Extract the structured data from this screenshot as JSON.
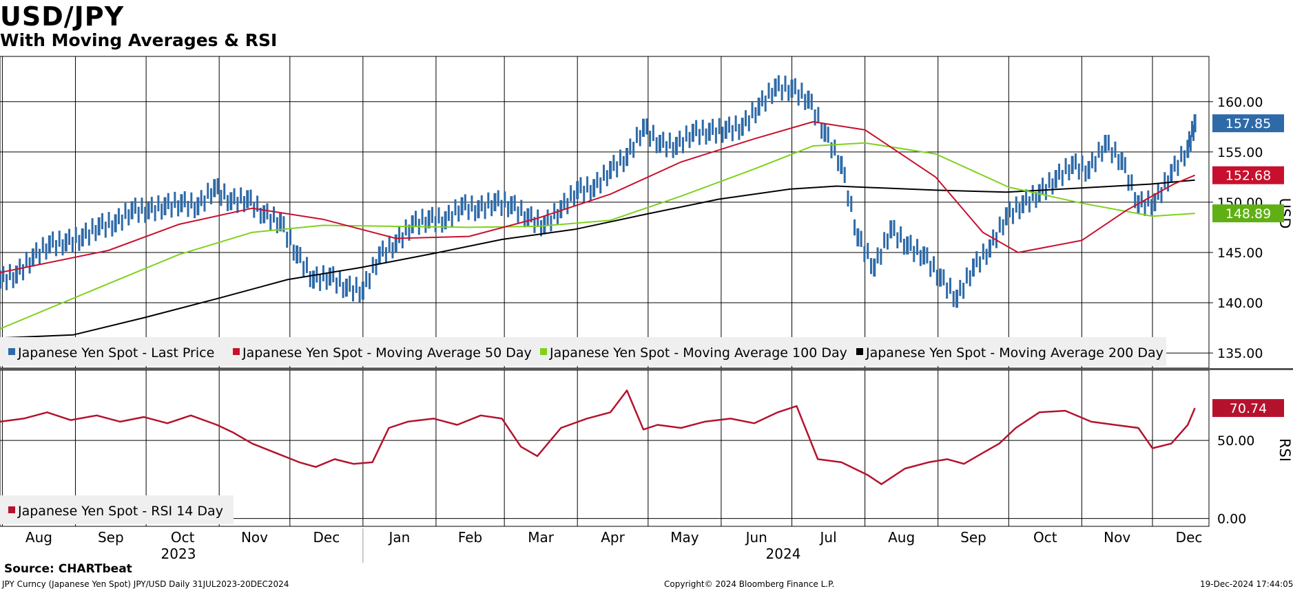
{
  "header": {
    "title": "USD/JPY",
    "subtitle": "With Moving Averages & RSI"
  },
  "footer": {
    "source": "Source: CHARTbeat",
    "ticker": "JPY Curncy (Japanese Yen Spot) JPY/USD  Daily 31JUL2023-20DEC2024",
    "copyright": "Copyright© 2024 Bloomberg Finance L.P.",
    "timestamp": "19-Dec-2024 17:44:05"
  },
  "colors": {
    "price": "#2e6aa8",
    "ma50": "#c8102e",
    "ma100": "#7fd11b",
    "ma200": "#000000",
    "rsi": "#b5122e"
  },
  "chart_data": [
    {
      "type": "line",
      "panel": "price",
      "ylabel": "USD",
      "ylim": [
        133.5,
        164.5
      ],
      "yticks": [
        "160.00",
        "155.00",
        "150.00",
        "145.00",
        "140.00",
        "135.00"
      ],
      "grid": true,
      "legend": "bottom-left",
      "legend_entries": [
        "Japanese Yen Spot - Last Price",
        "Japanese Yen Spot - Moving Average 50 Day",
        "Japanese Yen Spot - Moving Average 100 Day",
        "Japanese Yen Spot - Moving Average 200 Day"
      ],
      "last_values": {
        "price": "157.85",
        "ma50": "152.68",
        "ma100": "148.89"
      },
      "series": [
        {
          "name": "Japanese Yen Spot - Last Price",
          "x": [
            "2023-07-31",
            "2023-08-07",
            "2023-08-14",
            "2023-08-21",
            "2023-08-28",
            "2023-09-04",
            "2023-09-11",
            "2023-09-18",
            "2023-09-25",
            "2023-10-02",
            "2023-10-09",
            "2023-10-16",
            "2023-10-23",
            "2023-10-30",
            "2023-11-06",
            "2023-11-13",
            "2023-11-20",
            "2023-11-27",
            "2023-12-04",
            "2023-12-11",
            "2023-12-18",
            "2023-12-25",
            "2024-01-01",
            "2024-01-08",
            "2024-01-15",
            "2024-01-22",
            "2024-01-29",
            "2024-02-05",
            "2024-02-12",
            "2024-02-19",
            "2024-02-26",
            "2024-03-04",
            "2024-03-11",
            "2024-03-18",
            "2024-03-25",
            "2024-04-01",
            "2024-04-08",
            "2024-04-15",
            "2024-04-22",
            "2024-04-29",
            "2024-05-06",
            "2024-05-13",
            "2024-05-20",
            "2024-05-27",
            "2024-06-03",
            "2024-06-10",
            "2024-06-17",
            "2024-06-24",
            "2024-07-01",
            "2024-07-08",
            "2024-07-15",
            "2024-07-22",
            "2024-07-29",
            "2024-08-05",
            "2024-08-12",
            "2024-08-19",
            "2024-08-26",
            "2024-09-02",
            "2024-09-09",
            "2024-09-16",
            "2024-09-23",
            "2024-09-30",
            "2024-10-07",
            "2024-10-14",
            "2024-10-21",
            "2024-10-28",
            "2024-11-04",
            "2024-11-11",
            "2024-11-18",
            "2024-11-25",
            "2024-12-02",
            "2024-12-09",
            "2024-12-16",
            "2024-12-19"
          ],
          "values": [
            142.3,
            142.8,
            144.5,
            145.8,
            146.0,
            146.5,
            147.6,
            147.9,
            149.2,
            149.2,
            149.6,
            149.9,
            149.6,
            151.4,
            150.1,
            150.3,
            148.8,
            148.0,
            144.8,
            142.3,
            142.6,
            141.5,
            141.2,
            144.7,
            145.9,
            147.8,
            148.3,
            148.2,
            149.6,
            149.3,
            150.0,
            149.7,
            148.5,
            147.7,
            149.3,
            151.2,
            151.4,
            153.2,
            154.5,
            157.4,
            155.8,
            155.6,
            156.9,
            157.0,
            157.2,
            157.5,
            159.5,
            161.4,
            161.3,
            160.2,
            156.9,
            153.7,
            146.5,
            143.5,
            147.3,
            145.7,
            144.7,
            142.5,
            140.4,
            143.5,
            145.4,
            148.6,
            149.8,
            150.9,
            152.3,
            153.7,
            153.2,
            155.8,
            154.1,
            149.8,
            150.0,
            152.9,
            155.3,
            157.85
          ]
        },
        {
          "name": "Japanese Yen Spot - Moving Average 50 Day",
          "x": [
            "2023-07-31",
            "2023-09-15",
            "2023-10-15",
            "2023-11-15",
            "2023-12-15",
            "2024-01-15",
            "2024-02-15",
            "2024-03-15",
            "2024-04-15",
            "2024-05-15",
            "2024-06-15",
            "2024-07-10",
            "2024-08-01",
            "2024-08-31",
            "2024-09-20",
            "2024-10-05",
            "2024-11-01",
            "2024-11-20",
            "2024-12-10",
            "2024-12-19"
          ],
          "values": [
            143.0,
            145.2,
            147.8,
            149.4,
            148.3,
            146.4,
            146.6,
            148.4,
            150.8,
            154.0,
            156.3,
            158.0,
            157.2,
            152.5,
            147.0,
            145.0,
            146.2,
            149.2,
            151.8,
            152.68
          ]
        },
        {
          "name": "Japanese Yen Spot - Moving Average 100 Day",
          "x": [
            "2023-07-31",
            "2023-09-15",
            "2023-10-15",
            "2023-11-15",
            "2023-12-15",
            "2024-01-15",
            "2024-02-15",
            "2024-03-15",
            "2024-04-15",
            "2024-05-15",
            "2024-06-15",
            "2024-07-10",
            "2024-08-01",
            "2024-08-31",
            "2024-10-01",
            "2024-11-01",
            "2024-12-01",
            "2024-12-19"
          ],
          "values": [
            137.4,
            141.9,
            144.8,
            147.0,
            147.7,
            147.6,
            147.5,
            147.6,
            148.2,
            150.6,
            153.3,
            155.6,
            155.9,
            154.8,
            151.5,
            149.9,
            148.6,
            148.89
          ]
        },
        {
          "name": "Japanese Yen Spot - Moving Average 200 Day",
          "x": [
            "2023-07-31",
            "2023-08-31",
            "2023-09-30",
            "2023-10-31",
            "2023-11-30",
            "2023-12-31",
            "2024-01-31",
            "2024-02-29",
            "2024-03-31",
            "2024-04-30",
            "2024-05-31",
            "2024-06-30",
            "2024-07-20",
            "2024-08-31",
            "2024-09-30",
            "2024-10-31",
            "2024-11-30",
            "2024-12-19"
          ],
          "values": [
            136.5,
            136.8,
            138.5,
            140.4,
            142.3,
            143.5,
            144.9,
            146.3,
            147.3,
            148.8,
            150.3,
            151.3,
            151.6,
            151.2,
            151.0,
            151.4,
            151.8,
            152.2
          ]
        }
      ]
    },
    {
      "type": "line",
      "panel": "rsi",
      "ylabel": "RSI",
      "ylim": [
        -5,
        95
      ],
      "yticks": [
        "50.00",
        "0.00"
      ],
      "grid": true,
      "legend": "bottom-left",
      "legend_entries": [
        "Japanese Yen Spot - RSI 14 Day"
      ],
      "last_values": {
        "rsi": "70.74"
      },
      "series": [
        {
          "name": "Japanese Yen Spot - RSI 14 Day",
          "x": [
            "2023-07-31",
            "2023-08-10",
            "2023-08-20",
            "2023-08-30",
            "2023-09-10",
            "2023-09-20",
            "2023-09-30",
            "2023-10-10",
            "2023-10-20",
            "2023-10-31",
            "2023-11-07",
            "2023-11-15",
            "2023-11-25",
            "2023-12-05",
            "2023-12-12",
            "2023-12-20",
            "2023-12-28",
            "2024-01-05",
            "2024-01-12",
            "2024-01-20",
            "2024-01-31",
            "2024-02-10",
            "2024-02-20",
            "2024-02-29",
            "2024-03-08",
            "2024-03-15",
            "2024-03-25",
            "2024-04-05",
            "2024-04-15",
            "2024-04-22",
            "2024-04-29",
            "2024-05-05",
            "2024-05-15",
            "2024-05-25",
            "2024-06-05",
            "2024-06-15",
            "2024-06-25",
            "2024-07-03",
            "2024-07-12",
            "2024-07-22",
            "2024-08-02",
            "2024-08-08",
            "2024-08-18",
            "2024-08-28",
            "2024-09-05",
            "2024-09-12",
            "2024-09-20",
            "2024-09-27",
            "2024-10-04",
            "2024-10-14",
            "2024-10-25",
            "2024-11-05",
            "2024-11-15",
            "2024-11-25",
            "2024-12-01",
            "2024-12-09",
            "2024-12-16",
            "2024-12-19"
          ],
          "values": [
            62,
            64,
            68,
            63,
            66,
            62,
            65,
            61,
            66,
            60,
            55,
            48,
            42,
            36,
            33,
            38,
            35,
            36,
            58,
            62,
            64,
            60,
            66,
            64,
            46,
            40,
            58,
            64,
            68,
            82,
            57,
            60,
            58,
            62,
            64,
            61,
            68,
            72,
            38,
            36,
            28,
            22,
            32,
            36,
            38,
            35,
            42,
            48,
            58,
            68,
            69,
            62,
            60,
            58,
            45,
            48,
            60,
            70.74
          ]
        }
      ]
    }
  ],
  "axis": {
    "months": [
      "Aug",
      "Sep",
      "Oct",
      "Nov",
      "Dec",
      "Jan",
      "Feb",
      "Mar",
      "Apr",
      "May",
      "Jun",
      "Jul",
      "Aug",
      "Sep",
      "Oct",
      "Nov",
      "Dec"
    ],
    "years": [
      "2023",
      "2024"
    ]
  }
}
